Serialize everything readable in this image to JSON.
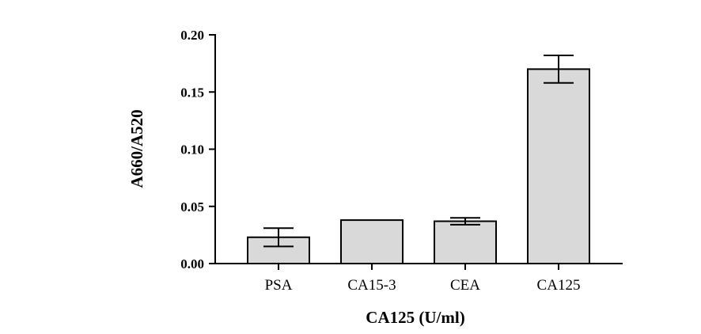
{
  "chart_data": {
    "type": "bar",
    "title": "",
    "xlabel": "CA125 (U/ml)",
    "ylabel": "A660/A520",
    "categories": [
      "PSA",
      "CA15-3",
      "CEA",
      "CA125"
    ],
    "values": [
      0.023,
      0.038,
      0.037,
      0.17
    ],
    "errors": [
      0.008,
      0.0,
      0.003,
      0.012
    ],
    "ylim": [
      0,
      0.2
    ],
    "yticks": [
      0.0,
      0.05,
      0.1,
      0.15,
      0.2
    ],
    "ytick_labels": [
      "0.00",
      "0.05",
      "0.10",
      "0.15",
      "0.20"
    ],
    "grid": false,
    "legend": "none",
    "bar_color": "#d9d9d9",
    "edge_color": "#000000"
  }
}
